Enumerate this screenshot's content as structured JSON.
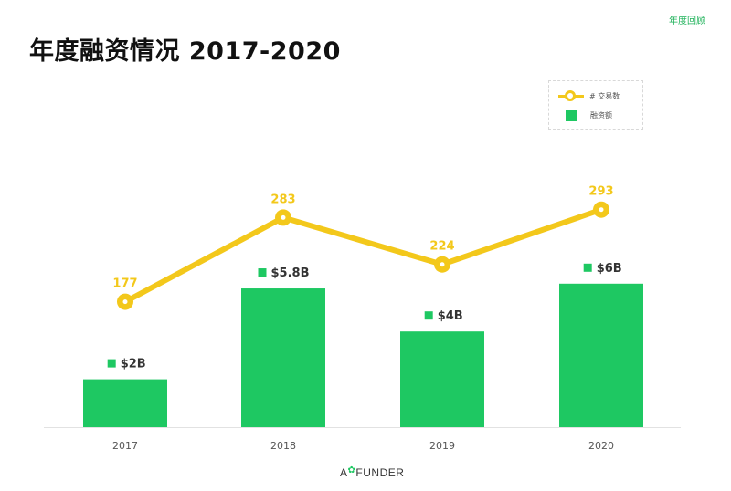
{
  "header": {
    "tag": "年度回顾",
    "title": "年度融资情况 2017-2020"
  },
  "legend": {
    "line_label": "# 交易数",
    "bar_label": "融资额",
    "placement": "top-right"
  },
  "logo": {
    "text_a": "A",
    "text_b": "FUNDER",
    "leaf_icon": "leaf-icon"
  },
  "colors": {
    "bar": "#1ec862",
    "line": "#f3c81b",
    "line_label": "#f3c81b",
    "bar_label": "#333333",
    "tag": "#1fb25a"
  },
  "chart_data": {
    "type": "bar",
    "categories": [
      "2017",
      "2018",
      "2019",
      "2020"
    ],
    "series": [
      {
        "name": "融资额",
        "type": "bar",
        "values": [
          2,
          5.8,
          4,
          6
        ],
        "labels": [
          "$2B",
          "$5.8B",
          "$4B",
          "$6B"
        ]
      },
      {
        "name": "# 交易数",
        "type": "line",
        "values": [
          177,
          283,
          224,
          293
        ],
        "labels": [
          "177",
          "283",
          "224",
          "293"
        ]
      }
    ],
    "grid": false
  }
}
